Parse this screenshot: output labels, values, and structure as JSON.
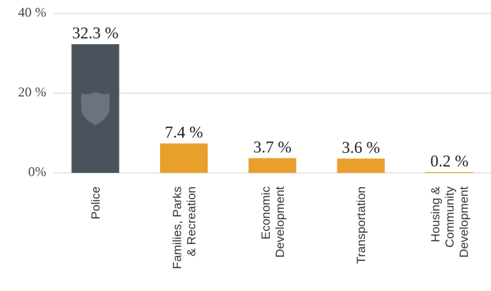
{
  "chart_data": {
    "type": "bar",
    "categories": [
      [
        "Police"
      ],
      [
        "Families, Parks",
        "& Recreation"
      ],
      [
        "Economic",
        "Development"
      ],
      [
        "Transportation"
      ],
      [
        "Housing &",
        "Community",
        "Development"
      ]
    ],
    "values": [
      32.3,
      7.4,
      3.7,
      3.6,
      0.2
    ],
    "value_labels": [
      "32.3 %",
      "7.4 %",
      "3.7 %",
      "3.6 %",
      "0.2 %"
    ],
    "colors": [
      "#4a535c",
      "#e8a02b",
      "#e8a02b",
      "#e8a02b",
      "#e8a02b"
    ],
    "ylim": [
      0,
      40
    ],
    "yticks": [
      {
        "value": 0,
        "label": "0%"
      },
      {
        "value": 20,
        "label": "20 %"
      },
      {
        "value": 40,
        "label": "40 %"
      }
    ],
    "grid": true
  }
}
